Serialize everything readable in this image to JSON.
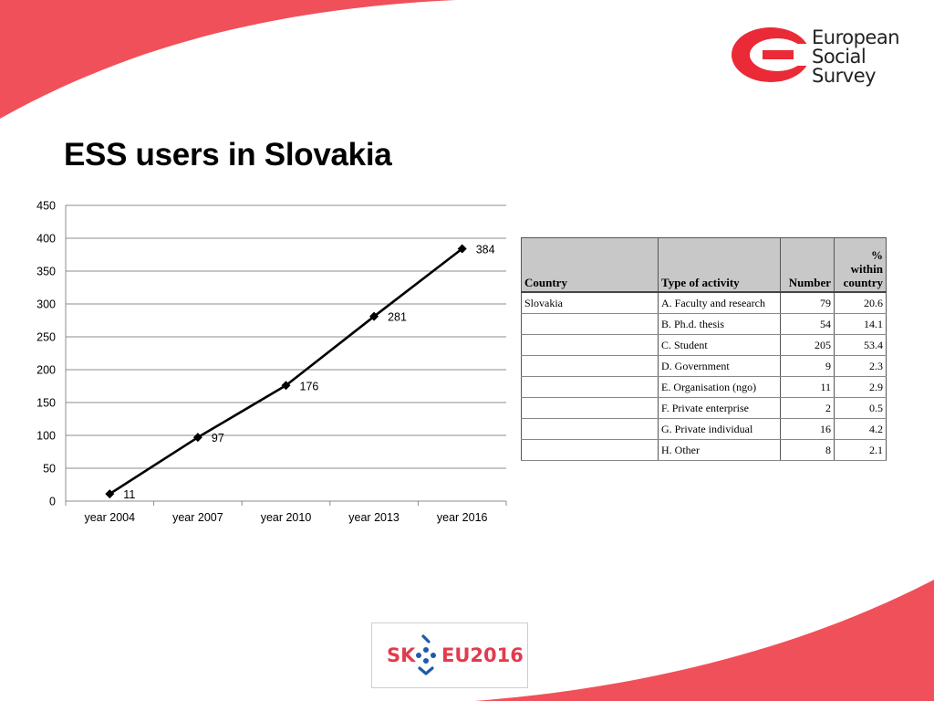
{
  "slide": {
    "title": "ESS users in Slovakia",
    "accent_color": "#f0505a",
    "logo": {
      "icon": "european-social-survey-logo",
      "words": [
        "European",
        "Social",
        "Survey"
      ]
    },
    "footer_logo": {
      "icon": "sk-eu2016-logo",
      "left_text": "SK",
      "right_text": "EU2016",
      "color": "#e33b4e",
      "dot_color": "#1d5aa8"
    }
  },
  "chart_data": {
    "type": "line",
    "title": "",
    "xlabel": "",
    "ylabel": "",
    "categories": [
      "year 2004",
      "year 2007",
      "year 2010",
      "year 2013",
      "year 2016"
    ],
    "values": [
      11,
      97,
      176,
      281,
      384
    ],
    "data_labels": [
      "11",
      "97",
      "176",
      "281",
      "384"
    ],
    "ylim": [
      0,
      450
    ],
    "yticks": [
      0,
      50,
      100,
      150,
      200,
      250,
      300,
      350,
      400,
      450
    ],
    "ytick_labels": [
      "0",
      "50",
      "100",
      "150",
      "200",
      "250",
      "300",
      "350",
      "400",
      "450"
    ],
    "grid": true,
    "legend": "none",
    "line_color": "#000000",
    "marker": "diamond"
  },
  "table": {
    "headers": [
      "Country",
      "Type of activity",
      "Number",
      "% within country"
    ],
    "rows": [
      [
        "Slovakia",
        "A. Faculty and research",
        "79",
        "20.6"
      ],
      [
        "",
        "B. Ph.d. thesis",
        "54",
        "14.1"
      ],
      [
        "",
        "C. Student",
        "205",
        "53.4"
      ],
      [
        "",
        "D. Government",
        "9",
        "2.3"
      ],
      [
        "",
        "E. Organisation (ngo)",
        "11",
        "2.9"
      ],
      [
        "",
        "F. Private enterprise",
        "2",
        "0.5"
      ],
      [
        "",
        "G. Private individual",
        "16",
        "4.2"
      ],
      [
        "",
        "H. Other",
        "8",
        "2.1"
      ]
    ]
  }
}
